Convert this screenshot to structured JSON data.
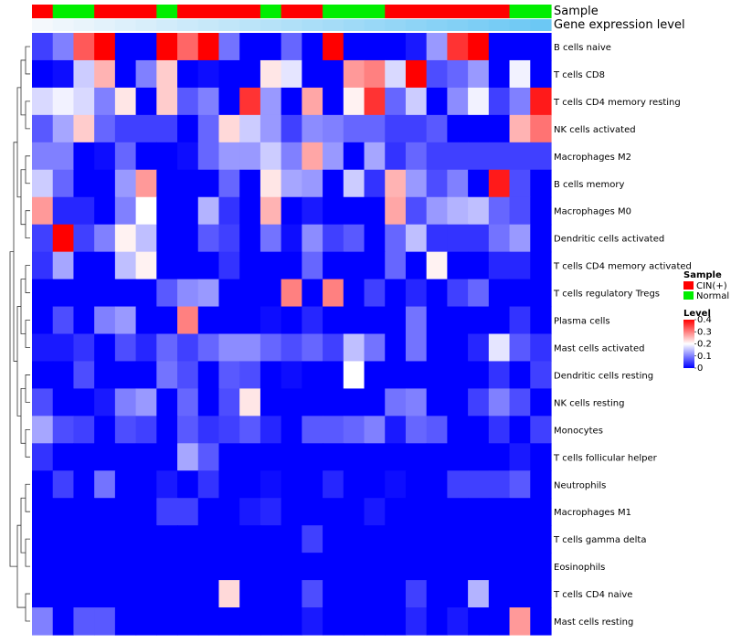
{
  "chart_data": {
    "type": "heatmap",
    "title": "",
    "annotation_labels": {
      "sample": "Sample",
      "expression": "Gene expression level"
    },
    "legend": {
      "sample_title": "Sample",
      "sample_entries": [
        {
          "label": "CIN(+)",
          "color": "#FF0000"
        },
        {
          "label": "Normal",
          "color": "#00EE00"
        }
      ],
      "level_title": "Level",
      "level_ticks": [
        "0.4",
        "0.3",
        "0.2",
        "0.1",
        "0"
      ],
      "level_tick_values": [
        0.4,
        0.3,
        0.2,
        0.1,
        0
      ]
    },
    "color_scale": {
      "min": 0,
      "mid": 0.2,
      "max": 0.4,
      "low": "#0000FF",
      "mid_color": "#FFFFFF",
      "high": "#FF0000"
    },
    "sample_groups": [
      "C",
      "N",
      "N",
      "C",
      "C",
      "C",
      "N",
      "C",
      "C",
      "C",
      "C",
      "N",
      "C",
      "C",
      "N",
      "N",
      "N",
      "C",
      "C",
      "C",
      "C",
      "C",
      "C",
      "N",
      "N"
    ],
    "expression_gradient": {
      "from": "#F4F8FC",
      "to": "#6CC8F4"
    },
    "rows": [
      "B cells naive",
      "T cells CD8",
      "T cells CD4 memory resting",
      "NK cells activated",
      "Macrophages M2",
      "B cells memory",
      "Macrophages M0",
      "Dendritic cells activated",
      "T cells CD4 memory activated",
      "T cells regulatory  Tregs",
      "Plasma cells",
      "Mast cells activated",
      "Dendritic cells resting",
      "NK cells resting",
      "Monocytes",
      "T cells follicular helper",
      "Neutrophils",
      "Macrophages M1",
      "T cells gamma delta",
      "Eosinophils",
      "T cells CD4 naive",
      "Mast cells resting"
    ],
    "values": [
      [
        0.05,
        0.1,
        0.33,
        0.4,
        0.0,
        0.0,
        0.4,
        0.32,
        0.4,
        0.09,
        0.0,
        0.0,
        0.08,
        0.0,
        0.4,
        0.0,
        0.0,
        0.0,
        0.02,
        0.12,
        0.36,
        0.4,
        0.0,
        0.0,
        0.0
      ],
      [
        0.0,
        0.01,
        0.16,
        0.26,
        0.0,
        0.1,
        0.24,
        0.0,
        0.01,
        0.0,
        0.0,
        0.22,
        0.18,
        0.0,
        0.0,
        0.28,
        0.3,
        0.17,
        0.4,
        0.06,
        0.08,
        0.12,
        0.0,
        0.19,
        0.0
      ],
      [
        0.17,
        0.19,
        0.17,
        0.1,
        0.22,
        0.0,
        0.24,
        0.07,
        0.1,
        0.0,
        0.36,
        0.12,
        0.0,
        0.27,
        0.0,
        0.21,
        0.36,
        0.08,
        0.16,
        0.0,
        0.11,
        0.19,
        0.05,
        0.1,
        0.38
      ],
      [
        0.07,
        0.13,
        0.24,
        0.08,
        0.05,
        0.05,
        0.05,
        0.0,
        0.08,
        0.23,
        0.16,
        0.12,
        0.05,
        0.11,
        0.1,
        0.08,
        0.08,
        0.05,
        0.05,
        0.07,
        0.0,
        0.0,
        0.0,
        0.26,
        0.31
      ],
      [
        0.1,
        0.1,
        0.0,
        0.01,
        0.08,
        0.0,
        0.0,
        0.01,
        0.08,
        0.12,
        0.12,
        0.16,
        0.1,
        0.27,
        0.12,
        0.0,
        0.13,
        0.04,
        0.08,
        0.05,
        0.05,
        0.05,
        0.05,
        0.05,
        0.05
      ],
      [
        0.16,
        0.08,
        0.0,
        0.0,
        0.12,
        0.28,
        0.0,
        0.0,
        0.0,
        0.08,
        0.0,
        0.22,
        0.13,
        0.12,
        0.0,
        0.16,
        0.04,
        0.26,
        0.12,
        0.06,
        0.1,
        0.0,
        0.38,
        0.06,
        0.0
      ],
      [
        0.28,
        0.03,
        0.03,
        0.0,
        0.1,
        0.2,
        0.0,
        0.0,
        0.14,
        0.04,
        0.0,
        0.26,
        0.0,
        0.02,
        0.0,
        0.0,
        0.0,
        0.27,
        0.06,
        0.12,
        0.14,
        0.15,
        0.08,
        0.06,
        0.0
      ],
      [
        0.05,
        0.4,
        0.05,
        0.1,
        0.21,
        0.15,
        0.0,
        0.0,
        0.07,
        0.05,
        0.0,
        0.09,
        0.01,
        0.11,
        0.05,
        0.07,
        0.0,
        0.08,
        0.15,
        0.04,
        0.04,
        0.04,
        0.09,
        0.12,
        0.0
      ],
      [
        0.04,
        0.13,
        0.0,
        0.0,
        0.15,
        0.21,
        0.0,
        0.0,
        0.0,
        0.04,
        0.0,
        0.0,
        0.0,
        0.08,
        0.0,
        0.0,
        0.0,
        0.08,
        0.0,
        0.21,
        0.0,
        0.0,
        0.03,
        0.03,
        0.0
      ],
      [
        0.0,
        0.0,
        0.0,
        0.0,
        0.0,
        0.0,
        0.07,
        0.11,
        0.12,
        0.0,
        0.0,
        0.0,
        0.3,
        0.0,
        0.3,
        0.0,
        0.05,
        0.0,
        0.03,
        0.0,
        0.05,
        0.08,
        0.0,
        0.0,
        0.0
      ],
      [
        0.0,
        0.06,
        0.0,
        0.1,
        0.12,
        0.0,
        0.0,
        0.3,
        0.0,
        0.0,
        0.0,
        0.01,
        0.0,
        0.03,
        0.0,
        0.0,
        0.0,
        0.0,
        0.09,
        0.0,
        0.0,
        0.0,
        0.0,
        0.04,
        0.0
      ],
      [
        0.02,
        0.02,
        0.04,
        0.0,
        0.06,
        0.03,
        0.08,
        0.05,
        0.08,
        0.11,
        0.11,
        0.08,
        0.06,
        0.08,
        0.05,
        0.15,
        0.09,
        0.0,
        0.09,
        0.0,
        0.0,
        0.03,
        0.18,
        0.07,
        0.04
      ],
      [
        0.0,
        0.0,
        0.06,
        0.0,
        0.0,
        0.0,
        0.09,
        0.06,
        0.0,
        0.07,
        0.06,
        0.0,
        0.01,
        0.0,
        0.0,
        0.2,
        0.0,
        0.0,
        0.0,
        0.0,
        0.0,
        0.0,
        0.04,
        0.0,
        0.05
      ],
      [
        0.06,
        0.0,
        0.0,
        0.02,
        0.1,
        0.12,
        0.0,
        0.08,
        0.0,
        0.06,
        0.22,
        0.0,
        0.0,
        0.0,
        0.0,
        0.0,
        0.0,
        0.09,
        0.1,
        0.0,
        0.0,
        0.05,
        0.1,
        0.06,
        0.0
      ],
      [
        0.13,
        0.06,
        0.05,
        0.0,
        0.06,
        0.05,
        0.0,
        0.07,
        0.04,
        0.05,
        0.07,
        0.03,
        0.0,
        0.07,
        0.07,
        0.08,
        0.1,
        0.02,
        0.08,
        0.07,
        0.0,
        0.0,
        0.04,
        0.0,
        0.05
      ],
      [
        0.04,
        0.0,
        0.0,
        0.0,
        0.0,
        0.0,
        0.0,
        0.13,
        0.07,
        0.0,
        0.0,
        0.0,
        0.0,
        0.0,
        0.0,
        0.0,
        0.0,
        0.0,
        0.0,
        0.0,
        0.0,
        0.0,
        0.0,
        0.02,
        0.0
      ],
      [
        0.0,
        0.05,
        0.0,
        0.09,
        0.0,
        0.0,
        0.02,
        0.0,
        0.04,
        0.0,
        0.0,
        0.01,
        0.0,
        0.0,
        0.03,
        0.0,
        0.0,
        0.01,
        0.0,
        0.0,
        0.05,
        0.05,
        0.05,
        0.07,
        0.0
      ],
      [
        0.0,
        0.0,
        0.0,
        0.0,
        0.0,
        0.0,
        0.05,
        0.05,
        0.0,
        0.0,
        0.02,
        0.03,
        0.0,
        0.0,
        0.0,
        0.0,
        0.02,
        0.0,
        0.0,
        0.0,
        0.0,
        0.0,
        0.0,
        0.0,
        0.0
      ],
      [
        0.0,
        0.0,
        0.0,
        0.0,
        0.0,
        0.0,
        0.0,
        0.0,
        0.0,
        0.0,
        0.0,
        0.0,
        0.0,
        0.05,
        0.0,
        0.0,
        0.0,
        0.0,
        0.0,
        0.0,
        0.0,
        0.0,
        0.0,
        0.0,
        0.0
      ],
      [
        0.0,
        0.0,
        0.0,
        0.0,
        0.0,
        0.0,
        0.0,
        0.0,
        0.0,
        0.0,
        0.0,
        0.0,
        0.0,
        0.0,
        0.0,
        0.0,
        0.0,
        0.0,
        0.0,
        0.0,
        0.0,
        0.0,
        0.0,
        0.0,
        0.0
      ],
      [
        0.0,
        0.0,
        0.0,
        0.0,
        0.0,
        0.0,
        0.0,
        0.0,
        0.0,
        0.23,
        0.0,
        0.0,
        0.0,
        0.06,
        0.0,
        0.0,
        0.0,
        0.0,
        0.05,
        0.0,
        0.0,
        0.14,
        0.0,
        0.0,
        0.0
      ],
      [
        0.1,
        0.0,
        0.07,
        0.07,
        0.0,
        0.0,
        0.0,
        0.0,
        0.0,
        0.0,
        0.0,
        0.0,
        0.0,
        0.02,
        0.0,
        0.0,
        0.0,
        0.0,
        0.03,
        0.0,
        0.02,
        0.0,
        0.0,
        0.28,
        0.0
      ]
    ]
  }
}
